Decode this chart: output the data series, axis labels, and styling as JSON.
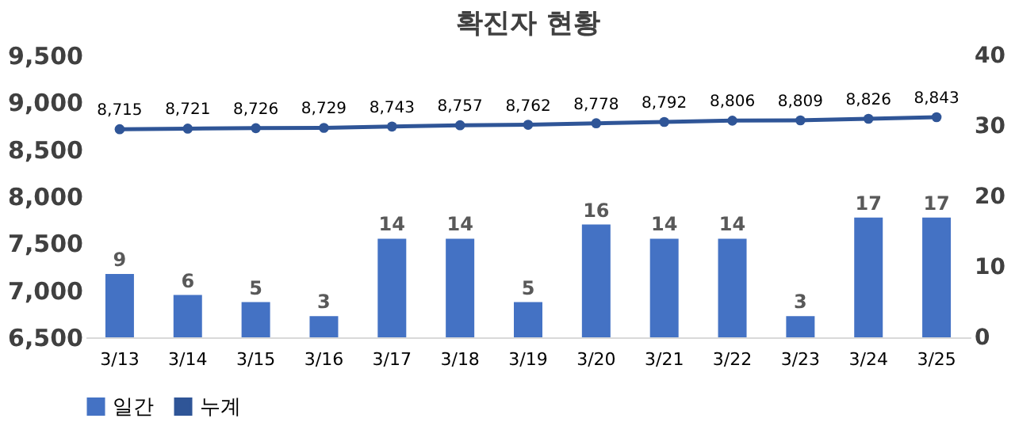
{
  "chart_data": {
    "type": "bar",
    "title": "확진자 현황",
    "categories": [
      "3/13",
      "3/14",
      "3/15",
      "3/16",
      "3/17",
      "3/18",
      "3/19",
      "3/20",
      "3/21",
      "3/22",
      "3/23",
      "3/24",
      "3/25"
    ],
    "series": [
      {
        "name": "일간",
        "type": "bar",
        "axis": "y2",
        "color": "#4472c4",
        "values": [
          9,
          6,
          5,
          3,
          14,
          14,
          5,
          16,
          14,
          14,
          3,
          17,
          17
        ]
      },
      {
        "name": "누계",
        "type": "line",
        "axis": "y",
        "color": "#2f5597",
        "marker": "circle",
        "values": [
          8715,
          8721,
          8726,
          8729,
          8743,
          8757,
          8762,
          8778,
          8792,
          8806,
          8809,
          8826,
          8843
        ],
        "value_labels": [
          "8,715",
          "8,721",
          "8,726",
          "8,729",
          "8,743",
          "8,757",
          "8,762",
          "8,778",
          "8,792",
          "8,806",
          "8,809",
          "8,826",
          "8,843"
        ]
      }
    ],
    "ylim": [
      6500,
      9500
    ],
    "yticks": [
      {
        "value": 6500,
        "label": "6,500"
      },
      {
        "value": 7000,
        "label": "7,000"
      },
      {
        "value": 7500,
        "label": "7,500"
      },
      {
        "value": 8000,
        "label": "8,000"
      },
      {
        "value": 8500,
        "label": "8,500"
      },
      {
        "value": 9000,
        "label": "9,000"
      },
      {
        "value": 9500,
        "label": "9,500"
      }
    ],
    "y2lim": [
      0,
      40
    ],
    "y2ticks": [
      0,
      10,
      20,
      30,
      40
    ],
    "data_labels": true,
    "grid": false,
    "legend": "bottom"
  }
}
